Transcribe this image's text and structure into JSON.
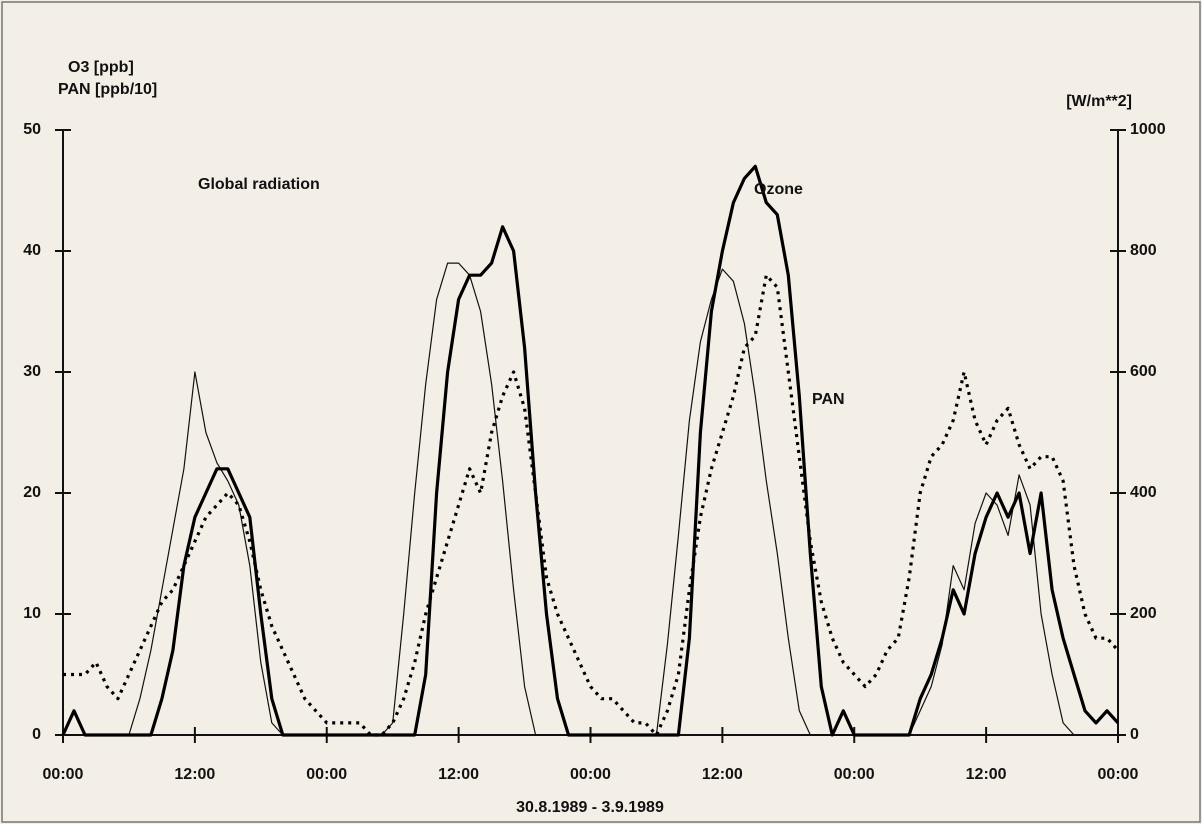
{
  "chart_data": {
    "type": "line",
    "xlabel": "30.8.1989 - 3.9.1989",
    "ylabel": [
      "O3 [ppb]",
      "PAN [ppb/10]"
    ],
    "y2label": "[W/m**2]",
    "x": [
      0,
      1,
      2,
      3,
      4,
      5,
      6,
      7,
      8,
      9,
      10,
      11,
      12,
      13,
      14,
      15,
      16,
      17,
      18,
      19,
      20,
      21,
      22,
      23,
      24,
      25,
      26,
      27,
      28,
      29,
      30,
      31,
      32,
      33,
      34,
      35,
      36,
      37,
      38,
      39,
      40,
      41,
      42,
      43,
      44,
      45,
      46,
      47,
      48,
      49,
      50,
      51,
      52,
      53,
      54,
      55,
      56,
      57,
      58,
      59,
      60,
      61,
      62,
      63,
      64,
      65,
      66,
      67,
      68,
      69,
      70,
      71,
      72,
      73,
      74,
      75,
      76,
      77,
      78,
      79,
      80,
      81,
      82,
      83,
      84,
      85,
      86,
      87,
      88,
      89,
      90,
      91,
      92,
      93,
      94,
      95,
      96
    ],
    "xlim": [
      0,
      96
    ],
    "xticks": [
      {
        "value": 0,
        "label": "00:00"
      },
      {
        "value": 12,
        "label": "12:00"
      },
      {
        "value": 24,
        "label": "00:00"
      },
      {
        "value": 36,
        "label": "12:00"
      },
      {
        "value": 48,
        "label": "00:00"
      },
      {
        "value": 60,
        "label": "12:00"
      },
      {
        "value": 72,
        "label": "00:00"
      },
      {
        "value": 84,
        "label": "12:00"
      },
      {
        "value": 96,
        "label": "00:00"
      }
    ],
    "ylim": [
      0,
      50
    ],
    "yticks": [
      0,
      10,
      20,
      30,
      40,
      50
    ],
    "y2lim": [
      0,
      1000
    ],
    "y2ticks": [
      0,
      200,
      400,
      600,
      800,
      1000
    ],
    "series": [
      {
        "name": "Global radiation",
        "color": "#111111",
        "line_style": "thin",
        "axis": "y2",
        "values": [
          0,
          0,
          0,
          0,
          0,
          0,
          0,
          60,
          140,
          240,
          340,
          440,
          600,
          500,
          450,
          420,
          380,
          280,
          120,
          20,
          0,
          0,
          0,
          0,
          0,
          0,
          0,
          0,
          0,
          0,
          20,
          200,
          400,
          580,
          720,
          780,
          780,
          760,
          700,
          580,
          420,
          240,
          80,
          0,
          0,
          0,
          0,
          0,
          0,
          0,
          0,
          0,
          0,
          0,
          0,
          150,
          330,
          520,
          650,
          720,
          770,
          750,
          680,
          560,
          420,
          300,
          160,
          40,
          0,
          0,
          0,
          0,
          0,
          0,
          0,
          0,
          0,
          0,
          40,
          80,
          150,
          280,
          240,
          350,
          400,
          380,
          330,
          430,
          380,
          200,
          100,
          20,
          0,
          0,
          0,
          0,
          0
        ]
      },
      {
        "name": "Ozone",
        "color": "#000000",
        "line_style": "thick",
        "values": [
          0,
          2,
          0,
          0,
          0,
          0,
          0,
          0,
          0,
          3,
          7,
          14,
          18,
          20,
          22,
          22,
          20,
          18,
          10,
          3,
          0,
          0,
          0,
          0,
          0,
          0,
          0,
          0,
          0,
          0,
          0,
          0,
          0,
          5,
          20,
          30,
          36,
          38,
          38,
          39,
          42,
          40,
          32,
          20,
          10,
          3,
          0,
          0,
          0,
          0,
          0,
          0,
          0,
          0,
          0,
          0,
          0,
          8,
          25,
          35,
          40,
          44,
          46,
          47,
          44,
          43,
          38,
          28,
          15,
          4,
          0,
          2,
          0,
          0,
          0,
          0,
          0,
          0,
          3,
          5,
          8,
          12,
          10,
          15,
          18,
          20,
          18,
          20,
          15,
          20,
          12,
          8,
          5,
          2,
          1,
          2,
          1
        ]
      },
      {
        "name": "PAN",
        "color": "#000000",
        "line_style": "dotted",
        "values": [
          5,
          5,
          5,
          6,
          4,
          3,
          5,
          7,
          9,
          11,
          12,
          14,
          16,
          18,
          19,
          20,
          19,
          16,
          12,
          9,
          7,
          5,
          3,
          2,
          1,
          1,
          1,
          1,
          0,
          0,
          1,
          3,
          6,
          10,
          13,
          16,
          19,
          22,
          20,
          25,
          28,
          30,
          27,
          20,
          13,
          10,
          8,
          6,
          4,
          3,
          3,
          2,
          1,
          1,
          0,
          2,
          5,
          12,
          18,
          22,
          25,
          28,
          32,
          33,
          38,
          37,
          30,
          23,
          16,
          11,
          8,
          6,
          5,
          4,
          5,
          7,
          8,
          13,
          20,
          23,
          24,
          26,
          30,
          26,
          24,
          26,
          27,
          24,
          22,
          23,
          23,
          21,
          14,
          10,
          8,
          8,
          7
        ]
      }
    ]
  }
}
